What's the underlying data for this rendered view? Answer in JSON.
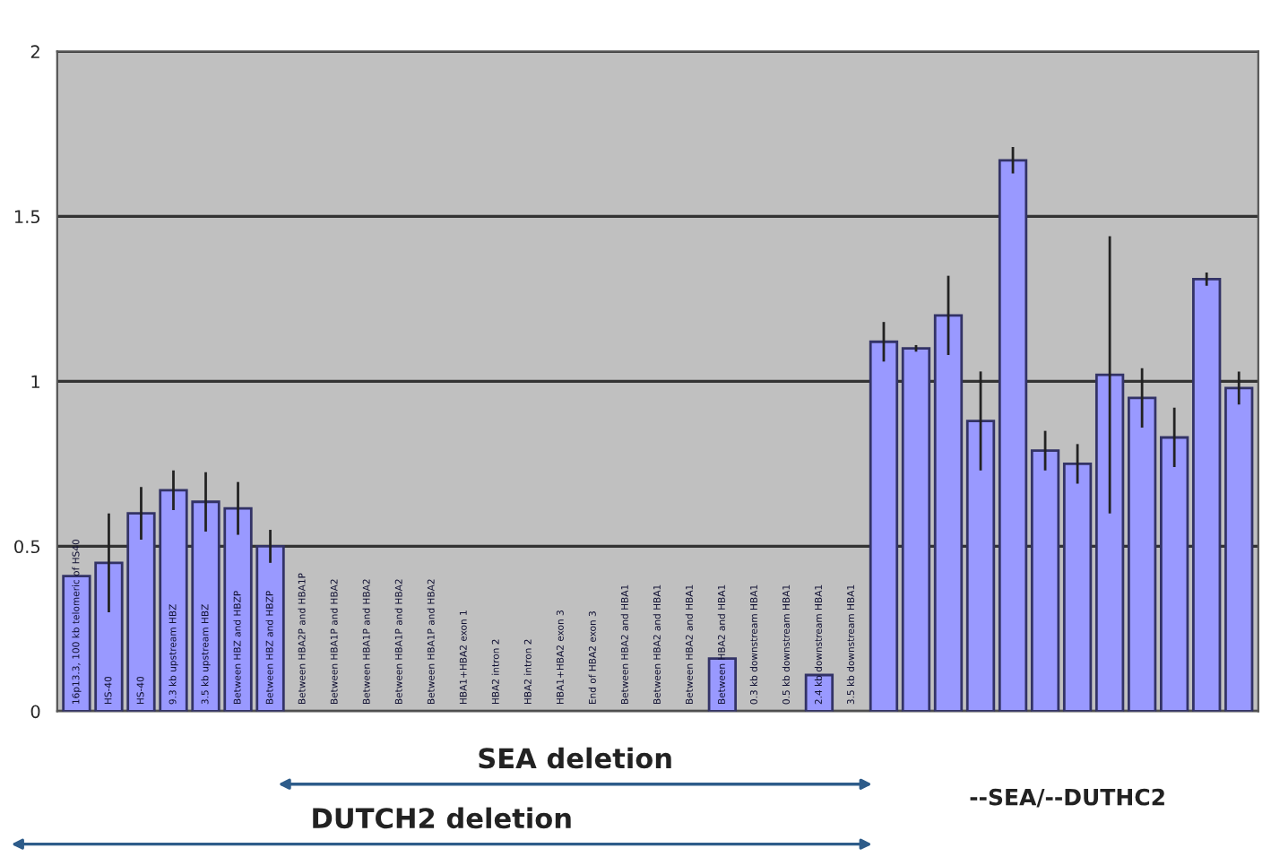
{
  "chart_data": {
    "type": "bar",
    "categories": [
      "16p13.3, 100 kb telomeric of HS40",
      "HS-40",
      "HS-40",
      "9.3 kb upstream HBZ",
      "3.5 kb upstream HBZ",
      "Between HBZ and HBZP",
      "Between HBZ and HBZP",
      "Between HBA2P and HBA1P",
      "Between HBA1P and HBA2",
      "Between HBA1P and HBA2",
      "Between HBA1P and HBA2",
      "Between HBA1P and HBA2",
      "HBA1+HBA2 exon 1",
      "HBA2 intron 2",
      "HBA2 intron 2",
      "HBA1+HBA2 exon 3",
      "End of HBA2 exon 3",
      "Between HBA2 and HBA1",
      "Between HBA2 and HBA1",
      "Between HBA2 and HBA1",
      "Between HBA2 and HBA1",
      "0.3 kb downstream HBA1",
      "0.5 kb downstream HBA1",
      "2.4 kb downstream HBA1",
      "3.5 kb downstream HBA1",
      null,
      null,
      null,
      null,
      null,
      null,
      null,
      null,
      null,
      null,
      null,
      null
    ],
    "values": [
      0.41,
      0.45,
      0.6,
      0.67,
      0.635,
      0.615,
      0.5,
      0,
      0,
      0,
      0,
      0,
      0,
      0,
      0,
      0,
      0,
      0,
      0,
      0,
      0.16,
      0,
      0,
      0.11,
      0,
      1.12,
      1.1,
      1.2,
      0.88,
      1.67,
      0.79,
      0.75,
      1.02,
      0.95,
      0.83,
      1.31,
      0.98
    ],
    "errors": [
      null,
      0.15,
      0.08,
      0.06,
      0.09,
      0.08,
      0.05,
      null,
      null,
      null,
      null,
      null,
      null,
      null,
      null,
      null,
      null,
      null,
      null,
      null,
      null,
      null,
      null,
      null,
      null,
      0.06,
      0.01,
      0.12,
      0.15,
      0.04,
      0.06,
      0.06,
      0.42,
      0.09,
      0.09,
      0.02,
      0.05
    ],
    "color": "#9999ff",
    "ylim": [
      0,
      2
    ],
    "yticks": [
      0,
      0.5,
      1,
      1.5,
      2
    ],
    "grid": "y",
    "annotations": [
      "SEA deletion",
      "DUTCH2 deletion",
      "--SEA/--DUTHC2"
    ]
  }
}
